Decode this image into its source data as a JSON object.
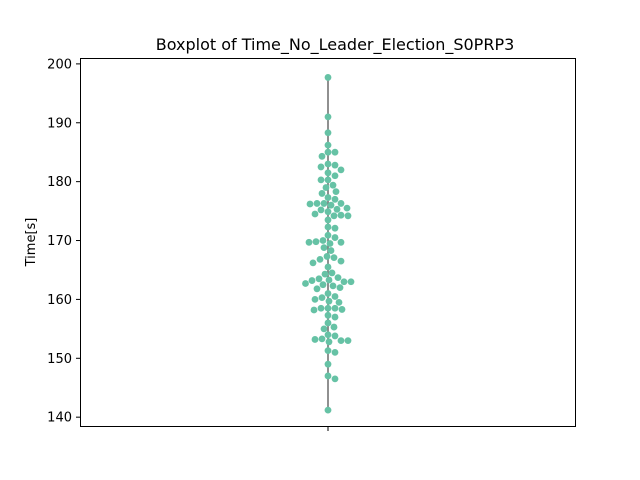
{
  "chart_data": {
    "type": "swarm-boxplot",
    "title": "Boxplot of Time_No_Leader_Election_S0PRP3",
    "xlabel": "",
    "ylabel": "Time[s]",
    "ylim": [
      138.5,
      201.0
    ],
    "yticks": [
      140,
      150,
      160,
      170,
      180,
      190,
      200
    ],
    "grid": false,
    "point_color": "#66c2a5",
    "whisker_color": "#6b6b6b",
    "series": [
      {
        "values": [
          197.7,
          191.0,
          188.3,
          186.2,
          185.0,
          185.0,
          184.3,
          183.0,
          182.8,
          182.5,
          182.0,
          181.5,
          181.0,
          180.3,
          180.3,
          179.4,
          179.0,
          178.3,
          178.0,
          177.3,
          177.0,
          176.3,
          176.3,
          176.3,
          176.2,
          176.0,
          175.5,
          175.3,
          175.2,
          174.9,
          174.5,
          174.3,
          174.2,
          174.2,
          173.5,
          172.3,
          172.1,
          170.9,
          170.5,
          170.0,
          169.8,
          169.7,
          169.7,
          169.5,
          168.8,
          168.3,
          167.3,
          167.1,
          166.8,
          166.5,
          166.2,
          165.5,
          164.5,
          164.3,
          163.7,
          163.5,
          163.3,
          163.2,
          163.0,
          163.0,
          162.7,
          162.5,
          162.3,
          162.0,
          161.8,
          161.0,
          160.5,
          160.3,
          160.0,
          159.7,
          159.5,
          158.5,
          158.5,
          158.5,
          158.3,
          158.2,
          157.3,
          157.0,
          156.0,
          155.3,
          155.0,
          154.0,
          153.8,
          153.3,
          153.2,
          153.0,
          153.0,
          152.8,
          151.3,
          151.0,
          149.0,
          147.0,
          146.5,
          141.2
        ]
      }
    ]
  }
}
